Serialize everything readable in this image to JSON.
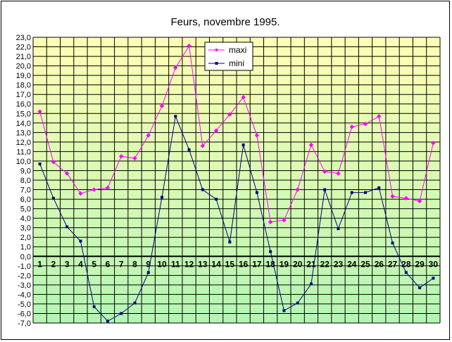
{
  "chart_data": {
    "type": "line",
    "title": "Feurs, novembre 1995.",
    "x": [
      1,
      2,
      3,
      4,
      5,
      6,
      7,
      8,
      9,
      10,
      11,
      12,
      13,
      14,
      15,
      16,
      17,
      18,
      19,
      20,
      21,
      22,
      23,
      24,
      25,
      26,
      27,
      28,
      29,
      30
    ],
    "ylim": [
      -7,
      23
    ],
    "ytick_step": 1,
    "grid": true,
    "legend": "top-center",
    "series": [
      {
        "name": "maxi",
        "color": "#ff00ff",
        "marker": "diamond",
        "values": [
          15.2,
          9.9,
          8.7,
          6.6,
          7.0,
          7.2,
          10.5,
          10.3,
          12.7,
          15.8,
          19.8,
          22.1,
          11.6,
          13.2,
          14.9,
          16.7,
          12.7,
          3.6,
          3.8,
          7.0,
          11.7,
          8.9,
          8.7,
          13.6,
          13.9,
          14.7,
          6.3,
          6.1,
          5.8,
          11.9
        ]
      },
      {
        "name": "mini",
        "color": "#000080",
        "marker": "square",
        "values": [
          9.7,
          6.1,
          3.1,
          1.6,
          -5.3,
          -6.8,
          -6.0,
          -4.9,
          -1.7,
          6.2,
          14.7,
          11.2,
          7.0,
          6.0,
          1.5,
          11.7,
          6.7,
          0.5,
          -5.7,
          -4.9,
          -2.9,
          7.0,
          2.9,
          6.7,
          6.7,
          7.2,
          1.4,
          -1.7,
          -3.3,
          -2.3
        ]
      }
    ],
    "colors": {
      "grid": "#000000",
      "gradient_top": "#ffffb3",
      "gradient_bottom": "#b3f5b3"
    }
  }
}
